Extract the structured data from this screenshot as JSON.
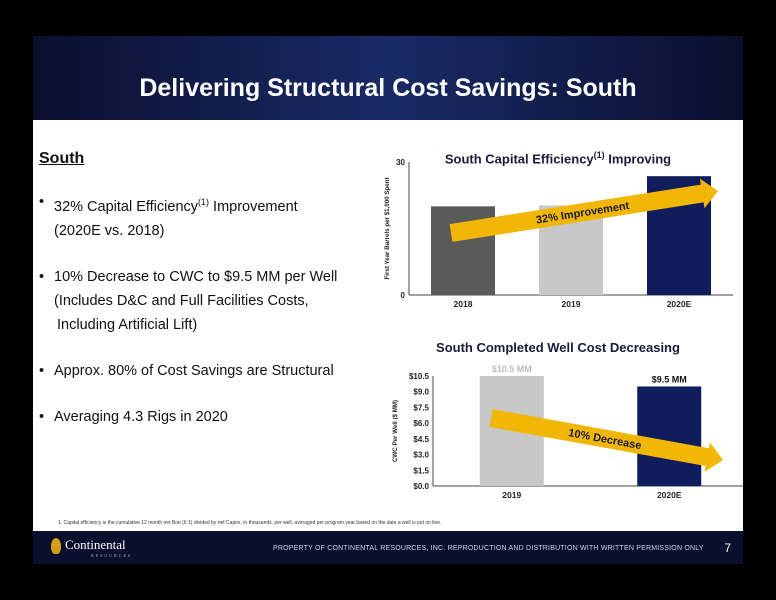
{
  "header": {
    "title": "Delivering Structural Cost Savings: South"
  },
  "left": {
    "section_title": "South",
    "bullets": [
      {
        "line1_pre": "32% Capital Efficiency",
        "line1_sup": "(1)",
        "line1_post": " Improvement",
        "line2": "(2020E vs. 2018)"
      },
      {
        "line1": "10% Decrease to CWC to $9.5 MM per Well",
        "line2": "(Includes D&C and Full Facilities Costs,",
        "line3": "Including Artificial Lift)"
      },
      {
        "line1": "Approx. 80% of Cost Savings are Structural"
      },
      {
        "line1": "Averaging 4.3 Rigs in 2020"
      }
    ]
  },
  "chart_data": [
    {
      "type": "bar",
      "title_pre": "South Capital Efficiency",
      "title_sup": "(1)",
      "title_post": " Improving",
      "ylabel": "First Year Barrels per $1,000 Spent",
      "ylim": [
        0,
        30
      ],
      "yticks": [
        "0",
        "30"
      ],
      "categories": [
        "2018",
        "2019",
        "2020E"
      ],
      "values": [
        20,
        20.2,
        26.8
      ],
      "colors": [
        "#5a5a5a",
        "#c8c8c8",
        "#0f1d5c"
      ],
      "annotation": "32% Improvement"
    },
    {
      "type": "bar",
      "title": "South Completed Well Cost Decreasing",
      "ylabel": "CWC Per Well ($ MM)",
      "ylim": [
        0,
        10.5
      ],
      "yticks": [
        "$0.0",
        "$1.5",
        "$3.0",
        "$4.5",
        "$6.0",
        "$7.5",
        "$9.0",
        "$10.5"
      ],
      "categories": [
        "2019",
        "2020E"
      ],
      "values": [
        10.5,
        9.5
      ],
      "data_labels": [
        "$10.5 MM",
        "$9.5 MM"
      ],
      "colors": [
        "#c8c8c8",
        "#0f1d5c"
      ],
      "annotation": "10% Decrease"
    }
  ],
  "footnote": "1. Capital efficiency is the cumulative 12 month net Boe (6:1) divided by net Capex, in thousands, per well, averaged per program year based on the date a well is put on line.",
  "footer": {
    "logo": "Continental",
    "logo_sub": "RESOURCES",
    "text": "PROPERTY OF CONTINENTAL RESOURCES, INC. REPRODUCTION AND DISTRIBUTION WITH WRITTEN PERMISSION ONLY",
    "page": "7"
  }
}
